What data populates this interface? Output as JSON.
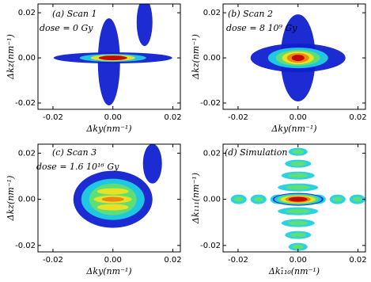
{
  "chart_data": [
    {
      "type": "heatmap",
      "annotations": [
        "(a) Scan 1",
        "dose = 0 Gy"
      ],
      "xlabel": "Δky(nm⁻¹)",
      "ylabel": "Δkz(nm⁻¹)",
      "xlim": [
        -0.025,
        0.0225
      ],
      "ylim": [
        -0.0228,
        0.0239
      ],
      "xticks": [
        {
          "value": -0.02,
          "label": "-0.02"
        },
        {
          "value": 0,
          "label": "0.00"
        },
        {
          "value": 0.02,
          "label": "0.02"
        }
      ],
      "yticks": [
        {
          "value": -0.02,
          "label": "-0.02"
        },
        {
          "value": 0,
          "label": "0.00"
        },
        {
          "value": 0.02,
          "label": "0.02"
        }
      ]
    },
    {
      "type": "heatmap",
      "annotations": [
        "(b) Scan 2",
        "dose = 8 10⁹ Gy"
      ],
      "xlabel": "Δky(nm⁻¹)",
      "ylabel": "Δkz(nm⁻¹)",
      "xlim": [
        -0.025,
        0.0225
      ],
      "ylim": [
        -0.0228,
        0.0239
      ],
      "xticks": [
        {
          "value": -0.02,
          "label": "-0.02"
        },
        {
          "value": 0,
          "label": "0.00"
        },
        {
          "value": 0.02,
          "label": "0.02"
        }
      ],
      "yticks": [
        {
          "value": -0.02,
          "label": "-0.02"
        },
        {
          "value": 0,
          "label": "0.00"
        },
        {
          "value": 0.02,
          "label": "0.02"
        }
      ]
    },
    {
      "type": "heatmap",
      "annotations": [
        "(c) Scan 3",
        "dose = 1.6 10¹⁶ Gy"
      ],
      "xlabel": "Δky(nm⁻¹)",
      "ylabel": "Δkz(nm⁻¹)",
      "xlim": [
        -0.025,
        0.0225
      ],
      "ylim": [
        -0.0228,
        0.0239
      ],
      "xticks": [
        {
          "value": -0.02,
          "label": "-0.02"
        },
        {
          "value": 0,
          "label": "0.00"
        },
        {
          "value": 0.02,
          "label": "0.02"
        }
      ],
      "yticks": [
        {
          "value": -0.02,
          "label": "-0.02"
        },
        {
          "value": 0,
          "label": "0.00"
        },
        {
          "value": 0.02,
          "label": "0.02"
        }
      ]
    },
    {
      "type": "heatmap",
      "annotations": [
        "(d) Simulation"
      ],
      "xlabel": "Δk₁̄₁₀(nm⁻¹)",
      "ylabel": "Δk₁₁₁(nm⁻¹)",
      "xlim": [
        -0.025,
        0.0225
      ],
      "ylim": [
        -0.0228,
        0.0239
      ],
      "xticks": [
        {
          "value": -0.02,
          "label": "-0.02"
        },
        {
          "value": 0,
          "label": "0.00"
        },
        {
          "value": 0.02,
          "label": "0.02"
        }
      ],
      "yticks": [
        {
          "value": -0.02,
          "label": "-0.02"
        },
        {
          "value": 0,
          "label": "0.00"
        },
        {
          "value": 0.02,
          "label": "0.02"
        }
      ]
    }
  ]
}
